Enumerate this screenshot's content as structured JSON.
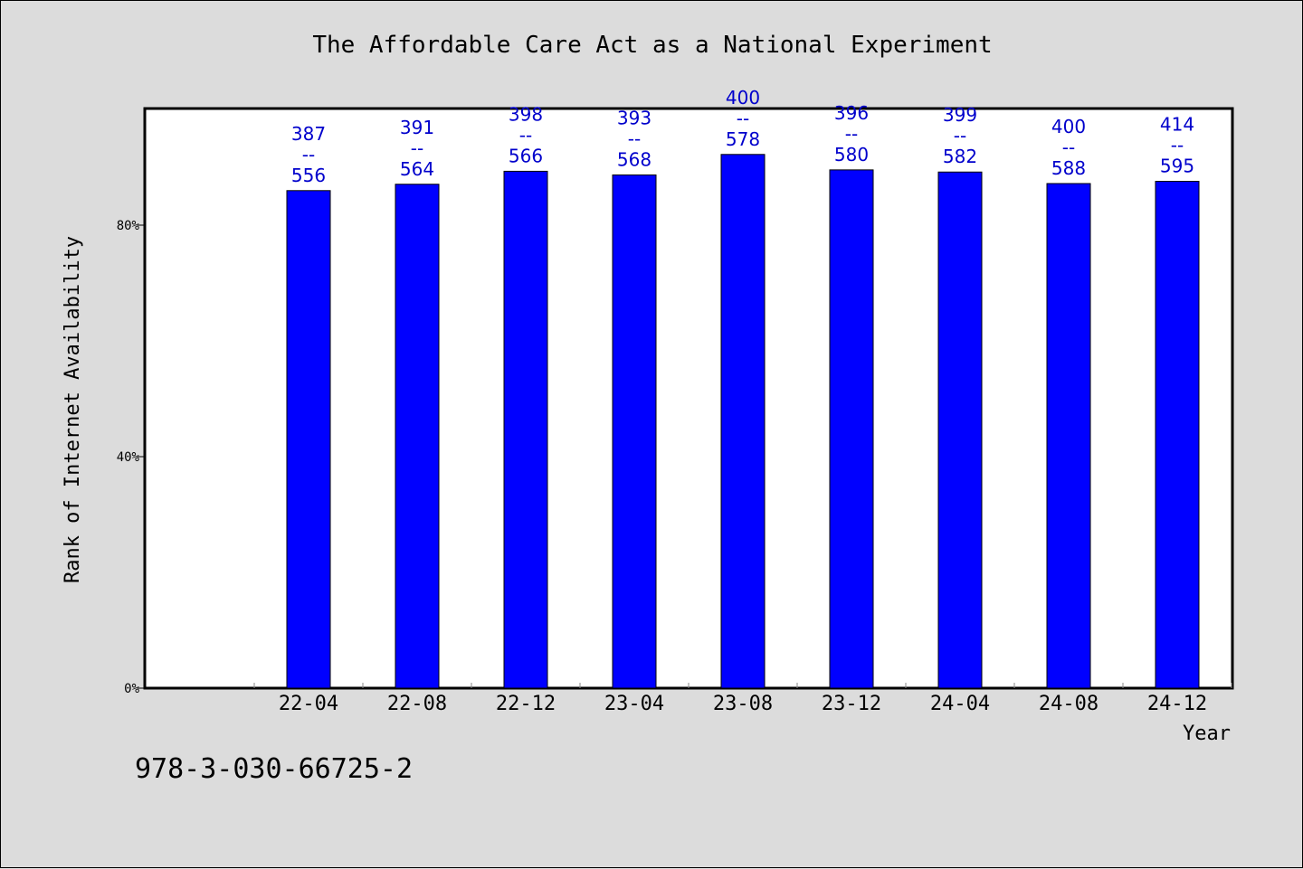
{
  "title": "The Affordable Care Act as a National Experiment",
  "footer_text": "978-3-030-66725-2",
  "colors": {
    "background": "#dcdcdc",
    "plot_background": "#ffffff",
    "bar": "#0000ff",
    "label": "#0000cc"
  },
  "chart_data": {
    "type": "bar",
    "title": "The Affordable Care Act as a National Experiment",
    "xlabel": "Year",
    "ylabel": "Rank of Internet Availability",
    "categories": [
      "22-04",
      "22-08",
      "22-12",
      "23-04",
      "23-08",
      "23-12",
      "24-04",
      "24-08",
      "24-12"
    ],
    "values": [
      0.8597,
      0.8707,
      0.8931,
      0.8868,
      0.9222,
      0.8955,
      0.8918,
      0.8719,
      0.8757
    ],
    "data_labels": [
      [
        "387",
        "--",
        "556"
      ],
      [
        "391",
        "--",
        "564"
      ],
      [
        "398",
        "--",
        "566"
      ],
      [
        "393",
        "--",
        "568"
      ],
      [
        "400",
        "--",
        "578"
      ],
      [
        "396",
        "--",
        "580"
      ],
      [
        "399",
        "--",
        "582"
      ],
      [
        "400",
        "--",
        "588"
      ],
      [
        "414",
        "--",
        "595"
      ]
    ],
    "yticks": [
      0,
      0.4,
      0.8
    ],
    "ytick_labels": [
      "0%",
      "40%",
      "80%"
    ],
    "ylim": [
      0,
      1.0
    ],
    "grid": false,
    "legend": "none"
  }
}
